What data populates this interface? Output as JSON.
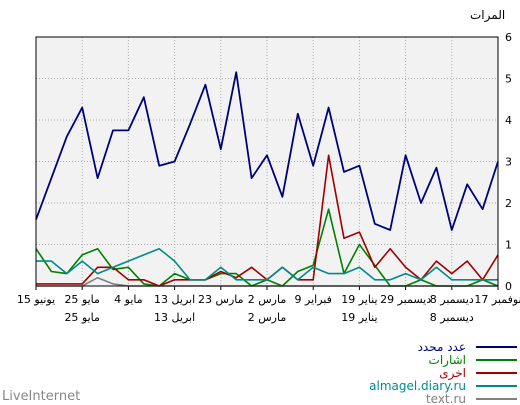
{
  "chart_data": {
    "type": "line",
    "ylabel": "المرات",
    "ylim": [
      0,
      6
    ],
    "yticks": [
      "0",
      "1",
      "2",
      "3",
      "4",
      "5",
      "6"
    ],
    "grid": true,
    "legend_position": "bottom-right",
    "x_upper_labels": [
      "17 نوفمبر",
      "8 ديسمبر",
      "29 ديسمبر",
      "19 يناير",
      "9 فبراير",
      "2 مارس",
      "23 مارس",
      "13 ابريل",
      "4 مايو",
      "25 مايو",
      "15 يونيو"
    ],
    "x_lower_labels": [
      "8 ديسمبر",
      "19 يناير",
      "2 مارس",
      "13 ابريل",
      "25 مايو"
    ],
    "series": [
      {
        "name": "عدد محدد",
        "color": "#00007b",
        "values": [
          1.6,
          2.6,
          3.6,
          4.3,
          2.6,
          3.75,
          3.75,
          4.55,
          2.9,
          3.0,
          3.9,
          4.85,
          3.3,
          5.15,
          2.6,
          3.15,
          2.15,
          4.15,
          2.9,
          4.3,
          2.75,
          2.9,
          1.5,
          1.35,
          3.15,
          2.0,
          2.85,
          1.35,
          2.45,
          1.85,
          3.0
        ]
      },
      {
        "name": "اشارات",
        "color": "#008000",
        "values": [
          0.9,
          0.35,
          0.3,
          0.75,
          0.9,
          0.4,
          0.45,
          0.05,
          0.0,
          0.3,
          0.15,
          0.15,
          0.3,
          0.3,
          0.0,
          0.15,
          0.0,
          0.35,
          0.5,
          1.85,
          0.3,
          1.0,
          0.5,
          0.0,
          0.0,
          0.15,
          0.0,
          0.0,
          0.0,
          0.15,
          0.0
        ]
      },
      {
        "name": "اخرى",
        "color": "#a00000",
        "values": [
          0.05,
          0.05,
          0.05,
          0.05,
          0.45,
          0.45,
          0.15,
          0.15,
          0.0,
          0.15,
          0.15,
          0.15,
          0.35,
          0.2,
          0.45,
          0.15,
          0.45,
          0.15,
          0.15,
          3.15,
          1.15,
          1.3,
          0.45,
          0.9,
          0.45,
          0.15,
          0.6,
          0.3,
          0.6,
          0.15,
          0.75
        ]
      },
      {
        "name": "almagel.diary.ru",
        "color": "#008b8b",
        "values": [
          0.6,
          0.6,
          0.3,
          0.6,
          0.3,
          0.45,
          0.6,
          0.75,
          0.9,
          0.6,
          0.15,
          0.15,
          0.45,
          0.15,
          0.15,
          0.15,
          0.45,
          0.15,
          0.45,
          0.3,
          0.3,
          0.45,
          0.15,
          0.15,
          0.3,
          0.15,
          0.45,
          0.15,
          0.15,
          0.15,
          0.15
        ]
      },
      {
        "name": "text.ru",
        "color": "#808080",
        "values": [
          0.0,
          0.0,
          0.0,
          0.0,
          0.2,
          0.05,
          0.0,
          0.0,
          0.0,
          0.0,
          0.0,
          0.0,
          0.0,
          0.0,
          0.0,
          0.0,
          0.0,
          0.0,
          0.0,
          0.0,
          0.0,
          0.0,
          0.0,
          0.0,
          0.0,
          0.0,
          0.0,
          0.0,
          0.0,
          0.0,
          0.0
        ]
      }
    ]
  },
  "footer": {
    "brand": "LiveInternet"
  }
}
